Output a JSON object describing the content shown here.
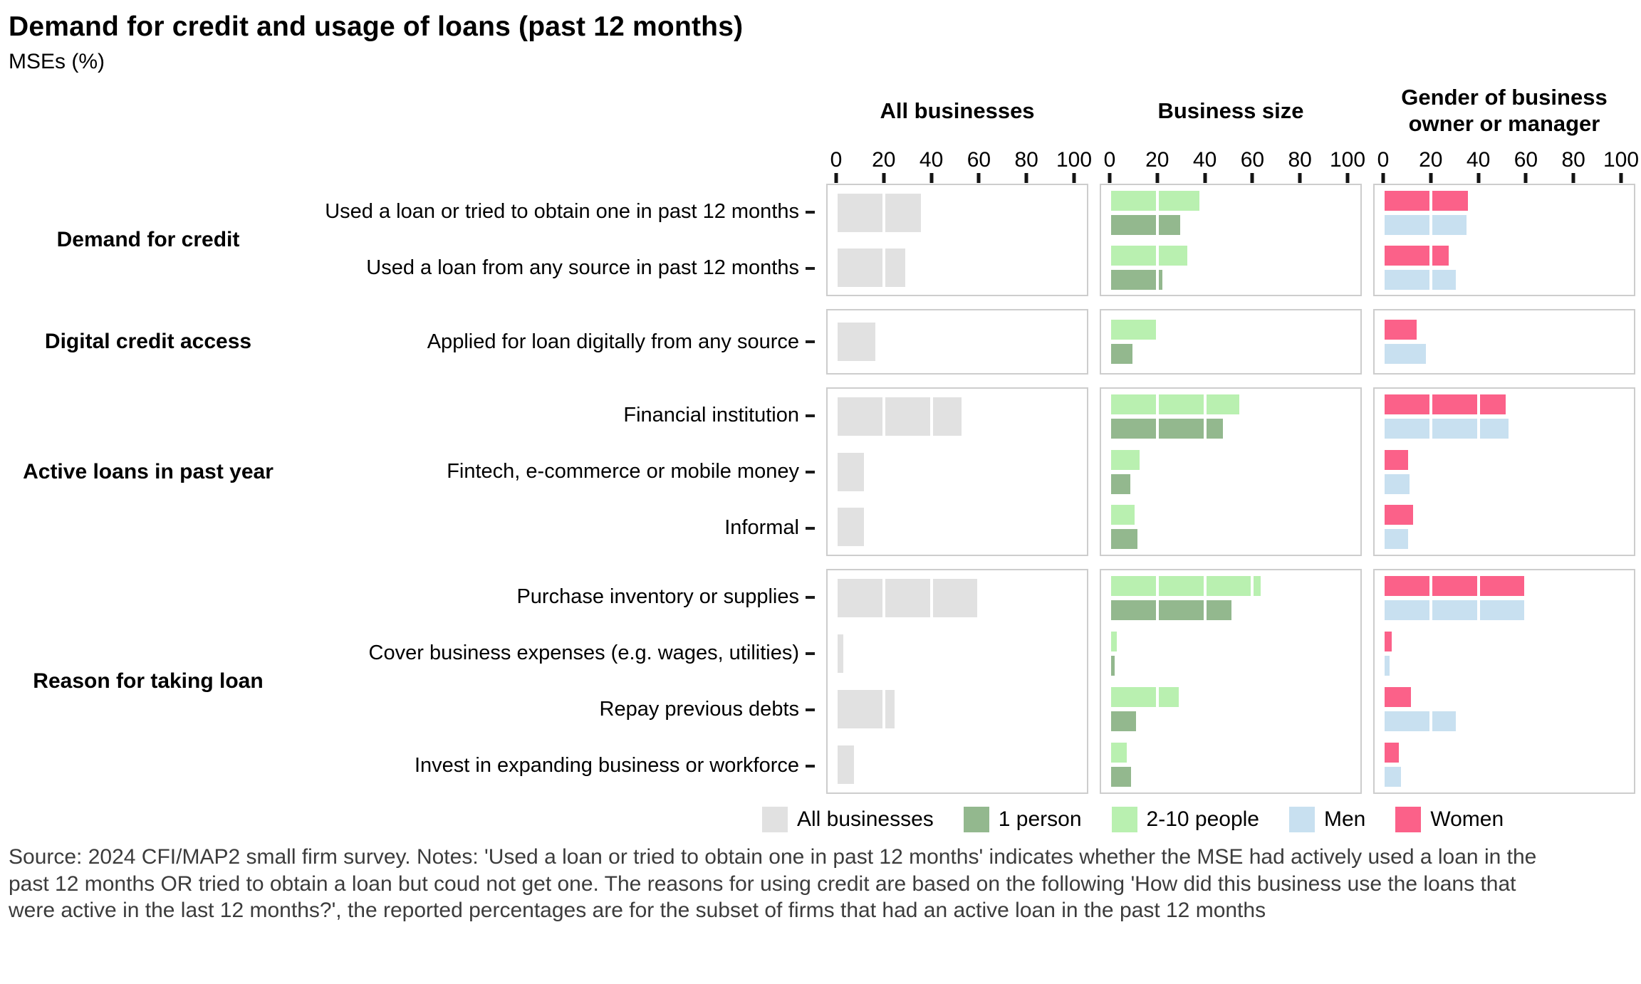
{
  "title": "Demand for credit and usage of loans (past 12 months)",
  "subtitle": "MSEs (%)",
  "axis_tick_labels": [
    "0",
    "20",
    "40",
    "60",
    "80",
    "100"
  ],
  "legend": [
    {
      "label": "All businesses",
      "color": "#e1e1e1"
    },
    {
      "label": "1 person",
      "color": "#93b88e"
    },
    {
      "label": "2-10 people",
      "color": "#b9f0b0"
    },
    {
      "label": "Men",
      "color": "#c8e0f0"
    },
    {
      "label": "Women",
      "color": "#fb6189"
    }
  ],
  "source_note": "Source: 2024 CFI/MAP2 small firm survey. Notes: 'Used a loan or tried to obtain one in past 12 months' indicates whether the MSE had actively used a loan in the past 12 months OR tried to obtain a loan but coud not get one. The reasons for using credit are based on the following 'How did this business use the loans that were active in the last 12 months?', the reported percentages are for the subset of firms that had an active loan in the past 12 months",
  "chart_data": {
    "type": "bar",
    "orientation": "horizontal",
    "unit": "%",
    "xlim": [
      0,
      100
    ],
    "x_ticks": [
      0,
      20,
      40,
      60,
      80,
      100
    ],
    "grid": "white lines over bars every 20 units",
    "legend_position": "bottom",
    "panels": [
      {
        "name": "All businesses",
        "series": [
          {
            "name": "All businesses",
            "color": "#e1e1e1"
          }
        ]
      },
      {
        "name": "Business size",
        "series": [
          {
            "name": "2-10 people",
            "color": "#b9f0b0"
          },
          {
            "name": "1 person",
            "color": "#93b88e"
          }
        ]
      },
      {
        "name": "Gender of business owner or manager",
        "series": [
          {
            "name": "Women",
            "color": "#fb6189"
          },
          {
            "name": "Men",
            "color": "#c8e0f0"
          }
        ]
      }
    ],
    "groups": [
      {
        "label": "Demand for credit",
        "rows": [
          {
            "label": "Used a loan or tried to obtain one in past 12 months",
            "values": {
              "All businesses": 35,
              "2-10 people": 37,
              "1 person": 29,
              "Women": 35,
              "Men": 34.5
            }
          },
          {
            "label": "Used a loan from any source in past 12 months",
            "values": {
              "All businesses": 28.5,
              "2-10 people": 32,
              "1 person": 21.5,
              "Women": 27,
              "Men": 30
            }
          }
        ]
      },
      {
        "label": "Digital credit access",
        "rows": [
          {
            "label": "Applied for loan digitally from any source",
            "values": {
              "All businesses": 16,
              "2-10 people": 19,
              "1 person": 9,
              "Women": 13.5,
              "Men": 17.5
            }
          }
        ]
      },
      {
        "label": "Active loans in past year",
        "rows": [
          {
            "label": "Financial institution",
            "values": {
              "All businesses": 52,
              "2-10 people": 54,
              "1 person": 47,
              "Women": 51,
              "Men": 52
            }
          },
          {
            "label": "Fintech, e-commerce or mobile money",
            "values": {
              "All businesses": 11,
              "2-10 people": 12,
              "1 person": 8,
              "Women": 10,
              "Men": 10.5
            }
          },
          {
            "label": "Informal",
            "values": {
              "All businesses": 11,
              "2-10 people": 10,
              "1 person": 11,
              "Women": 12,
              "Men": 10
            }
          }
        ]
      },
      {
        "label": "Reason for taking loan",
        "rows": [
          {
            "label": "Purchase inventory or supplies",
            "values": {
              "All businesses": 60,
              "2-10 people": 63,
              "1 person": 50.5,
              "Women": 60,
              "Men": 60
            }
          },
          {
            "label": "Cover business expenses (e.g. wages, utilities)",
            "values": {
              "All businesses": 2.5,
              "2-10 people": 2.5,
              "1 person": 1.5,
              "Women": 3,
              "Men": 2
            }
          },
          {
            "label": "Repay previous debts",
            "values": {
              "All businesses": 24,
              "2-10 people": 28.5,
              "1 person": 10.5,
              "Women": 11,
              "Men": 30
            }
          },
          {
            "label": "Invest in expanding business or workforce",
            "values": {
              "All businesses": 7,
              "2-10 people": 6.5,
              "1 person": 8.5,
              "Women": 6,
              "Men": 7
            }
          }
        ]
      }
    ]
  }
}
